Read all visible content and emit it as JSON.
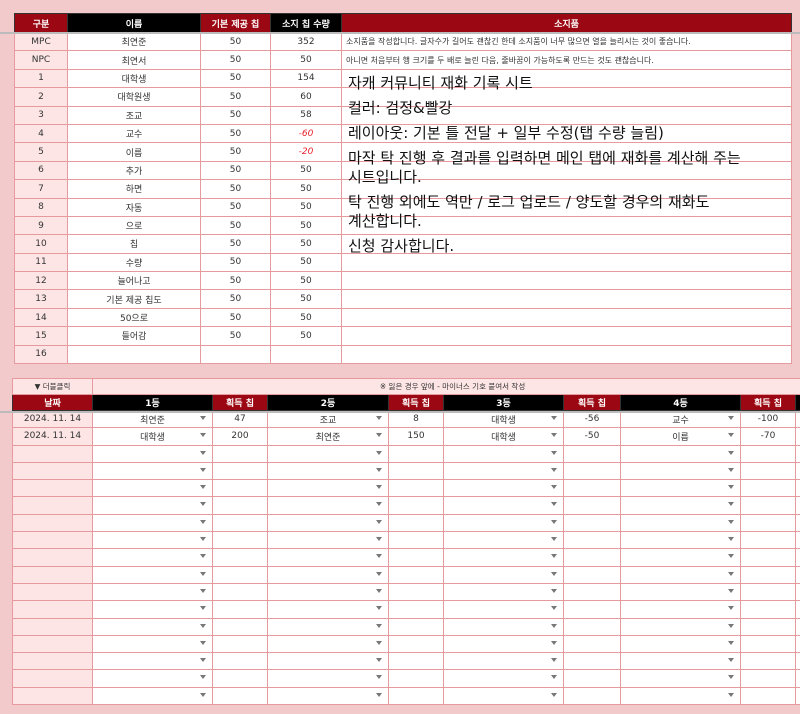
{
  "top_table": {
    "headers": [
      "구분",
      "이름",
      "기본 제공 칩",
      "소지 칩 수량",
      "소지품"
    ],
    "rows": [
      {
        "cat": "MPC",
        "name": "최연준",
        "base": "50",
        "held": "352",
        "note": "소지품을 작성합니다. 글자수가 길어도 괜찮긴 한데 소지품이 너무 많으면 열을 늘리시는 것이 좋습니다."
      },
      {
        "cat": "NPC",
        "name": "최연서",
        "base": "50",
        "held": "50",
        "note": "아니면 처음부터 행 크기를 두 배로 늘린 다음, 줄바꿈이 가능하도록 만드는 것도 괜찮습니다."
      },
      {
        "cat": "1",
        "name": "대학생",
        "base": "50",
        "held": "154",
        "note": ""
      },
      {
        "cat": "2",
        "name": "대학원생",
        "base": "50",
        "held": "60",
        "note": ""
      },
      {
        "cat": "3",
        "name": "조교",
        "base": "50",
        "held": "58",
        "note": ""
      },
      {
        "cat": "4",
        "name": "교수",
        "base": "50",
        "held": "-60",
        "note": "",
        "negative": true
      },
      {
        "cat": "5",
        "name": "이름",
        "base": "50",
        "held": "-20",
        "note": "",
        "negative": true
      },
      {
        "cat": "6",
        "name": "추가",
        "base": "50",
        "held": "50",
        "note": ""
      },
      {
        "cat": "7",
        "name": "하면",
        "base": "50",
        "held": "50",
        "note": ""
      },
      {
        "cat": "8",
        "name": "자동",
        "base": "50",
        "held": "50",
        "note": ""
      },
      {
        "cat": "9",
        "name": "으로",
        "base": "50",
        "held": "50",
        "note": ""
      },
      {
        "cat": "10",
        "name": "칩",
        "base": "50",
        "held": "50",
        "note": ""
      },
      {
        "cat": "11",
        "name": "수량",
        "base": "50",
        "held": "50",
        "note": ""
      },
      {
        "cat": "12",
        "name": "늘어나고",
        "base": "50",
        "held": "50",
        "note": ""
      },
      {
        "cat": "13",
        "name": "기본 제공 칩도",
        "base": "50",
        "held": "50",
        "note": ""
      },
      {
        "cat": "14",
        "name": "50으로",
        "base": "50",
        "held": "50",
        "note": ""
      },
      {
        "cat": "15",
        "name": "들어감",
        "base": "50",
        "held": "50",
        "note": ""
      },
      {
        "cat": "16",
        "name": "",
        "base": "",
        "held": "",
        "note": ""
      }
    ]
  },
  "log_table": {
    "toggle": "▼ 더블클릭",
    "hint": "※ 잃은 경우 앞에 - 마이너스 기호 붙여서 작성",
    "headers": [
      "날짜",
      "1등",
      "획득 칩",
      "2등",
      "획득 칩",
      "3등",
      "획득 칩",
      "4등",
      "획득 칩"
    ],
    "rows": [
      [
        "2024. 11. 14",
        "최연준",
        "47",
        "조교",
        "8",
        "대학생",
        "-56",
        "교수",
        "-100"
      ],
      [
        "2024. 11. 14",
        "대학생",
        "200",
        "최연준",
        "150",
        "대학생",
        "-50",
        "이름",
        "-70"
      ]
    ],
    "empty_rows": 15
  },
  "overlay": {
    "title": "자캐 커뮤니티 재화 기록 시트",
    "color": "컬러: 검정&빨강",
    "layout": "레이아웃: 기본 틀 전달 + 일부 수정(탭 수량 늘림)",
    "desc1": "마작 탁 진행 후 결과를 입력하면 메인 탭에 재화를 계산해 주는 시트입니다.",
    "desc2": "탁 진행 외에도 역만 / 로그 업로드 / 양도할 경우의 재화도 계산합니다.",
    "thanks": "신청 감사합니다."
  },
  "colors": {
    "header_red": "#9b0712",
    "header_black": "#000000",
    "background": "#f3cacb",
    "negative": "#e8202c"
  }
}
